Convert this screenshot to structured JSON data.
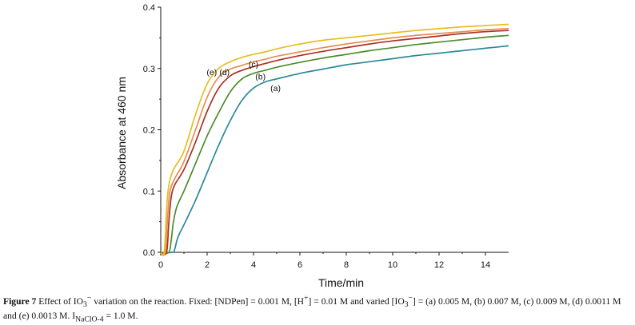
{
  "chart_data": {
    "type": "line",
    "title": "",
    "xlabel": "Time/min",
    "ylabel": "Absorbance at 460 nm",
    "xlim": [
      0,
      15
    ],
    "ylim": [
      0,
      0.4
    ],
    "x_ticks": [
      "0",
      "2",
      "4",
      "6",
      "8",
      "10",
      "12",
      "14"
    ],
    "y_ticks": [
      "0.0",
      "0.1",
      "0.2",
      "0.3",
      "0.4"
    ],
    "grid": false,
    "series": [
      {
        "name": "(a)",
        "color": "#2a8a99",
        "x": [
          0,
          0.5,
          0.6,
          0.7,
          0.8,
          1.0,
          1.5,
          2.0,
          2.5,
          3.0,
          3.5,
          4.0,
          4.5,
          5,
          6,
          7,
          8,
          9,
          10,
          11,
          12,
          13,
          14,
          15
        ],
        "y": [
          0,
          0,
          0.005,
          0.02,
          0.03,
          0.045,
          0.085,
          0.13,
          0.175,
          0.215,
          0.248,
          0.268,
          0.278,
          0.283,
          0.292,
          0.299,
          0.306,
          0.311,
          0.316,
          0.321,
          0.325,
          0.329,
          0.333,
          0.337
        ]
      },
      {
        "name": "(b)",
        "color": "#4e8c2d",
        "x": [
          0,
          0.35,
          0.45,
          0.55,
          0.7,
          1.0,
          1.5,
          2.0,
          2.5,
          3.0,
          3.5,
          4.0,
          4.5,
          5,
          6,
          7,
          8,
          9,
          10,
          11,
          12,
          13,
          14,
          15
        ],
        "y": [
          0,
          0,
          0.02,
          0.05,
          0.075,
          0.1,
          0.145,
          0.19,
          0.228,
          0.262,
          0.283,
          0.292,
          0.297,
          0.302,
          0.31,
          0.317,
          0.323,
          0.329,
          0.334,
          0.339,
          0.343,
          0.347,
          0.351,
          0.354
        ]
      },
      {
        "name": "(c)",
        "color": "#a83226",
        "x": [
          0,
          0.25,
          0.35,
          0.45,
          0.6,
          1.0,
          1.5,
          2.0,
          2.5,
          3.0,
          3.5,
          4.0,
          4.5,
          5,
          6,
          7,
          8,
          9,
          10,
          11,
          12,
          13,
          14,
          15
        ],
        "y": [
          0,
          0,
          0.05,
          0.09,
          0.11,
          0.135,
          0.18,
          0.23,
          0.268,
          0.288,
          0.297,
          0.303,
          0.308,
          0.313,
          0.321,
          0.328,
          0.334,
          0.34,
          0.345,
          0.349,
          0.353,
          0.357,
          0.36,
          0.362
        ]
      },
      {
        "name": "(d)",
        "color": "#e98d52",
        "x": [
          0,
          0.2,
          0.3,
          0.4,
          0.6,
          1.0,
          1.5,
          2.0,
          2.5,
          3.0,
          3.5,
          4.0,
          4.5,
          5,
          6,
          7,
          8,
          9,
          10,
          11,
          12,
          13,
          14,
          15
        ],
        "y": [
          0,
          0,
          0.06,
          0.1,
          0.12,
          0.148,
          0.2,
          0.253,
          0.286,
          0.299,
          0.305,
          0.311,
          0.315,
          0.32,
          0.327,
          0.334,
          0.34,
          0.345,
          0.35,
          0.354,
          0.357,
          0.36,
          0.363,
          0.365
        ]
      },
      {
        "name": "(e)",
        "color": "#e6bf1f",
        "x": [
          0,
          0.15,
          0.25,
          0.35,
          0.55,
          1.0,
          1.5,
          2.0,
          2.5,
          3.0,
          3.5,
          4.0,
          4.5,
          5,
          6,
          7,
          8,
          9,
          10,
          11,
          12,
          13,
          14,
          15
        ],
        "y": [
          0,
          0,
          0.07,
          0.11,
          0.135,
          0.165,
          0.225,
          0.275,
          0.3,
          0.311,
          0.318,
          0.323,
          0.327,
          0.332,
          0.34,
          0.346,
          0.35,
          0.354,
          0.358,
          0.362,
          0.365,
          0.368,
          0.37,
          0.372
        ]
      }
    ],
    "annotations": [
      {
        "text": "(a)",
        "x": 4.95,
        "y": 0.263
      },
      {
        "text": "(b)",
        "x": 4.3,
        "y": 0.282
      },
      {
        "text": "(c)",
        "x": 4.0,
        "y": 0.302
      },
      {
        "text": "(d)",
        "x": 2.75,
        "y": 0.289
      },
      {
        "text": "(e)",
        "x": 2.2,
        "y": 0.289
      }
    ]
  },
  "caption": {
    "figure_label": "Figure 7",
    "text_1": " Effect of IO",
    "sub_1": "3",
    "sup_1": "−",
    "text_2": " variation on the reaction. Fixed: [NDPen] = 0.001 M, [H",
    "sup_2": "+",
    "text_3": "] = 0.01 M and varied [IO",
    "sub_2": "3",
    "sup_3": "−",
    "text_4": "] = (a) 0.005 M, (b) 0.007 M, (c) 0.009 M, (d) 0.0011 M and (e) 0.0013 M. I",
    "sub_3": "NaClO-4",
    "text_5": " = 1.0 M."
  }
}
